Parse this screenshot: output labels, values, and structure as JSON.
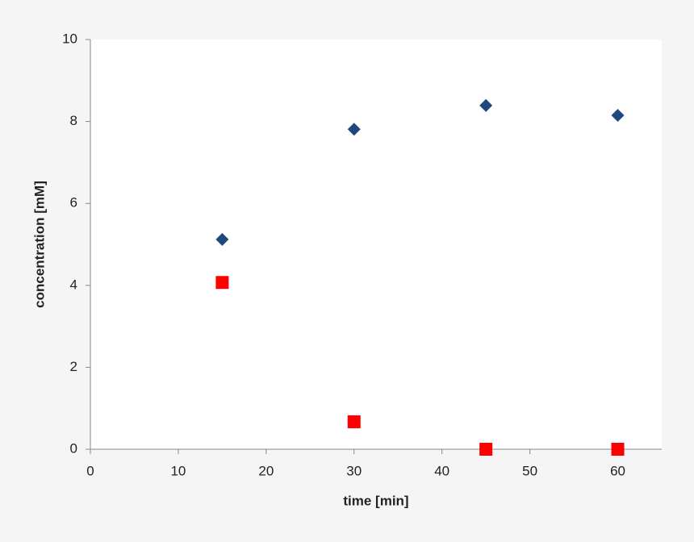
{
  "chart_data": {
    "type": "scatter",
    "x_label": "time [min]",
    "y_label": "concentration [mM]",
    "xlim": [
      0,
      65
    ],
    "xticks": [
      0,
      10,
      20,
      30,
      40,
      50,
      60
    ],
    "ylim": [
      0,
      10
    ],
    "yticks": [
      0,
      2,
      4,
      6,
      8,
      10
    ],
    "series": [
      {
        "color": "#1f497d",
        "marker": "diamond",
        "x": [
          15,
          30,
          45,
          60
        ],
        "values": [
          5.12,
          7.81,
          8.39,
          8.15
        ]
      },
      {
        "color": "#ff0000",
        "marker": "square",
        "x": [
          15,
          30,
          45,
          60
        ],
        "values": [
          4.07,
          0.67,
          0,
          0
        ]
      }
    ]
  }
}
